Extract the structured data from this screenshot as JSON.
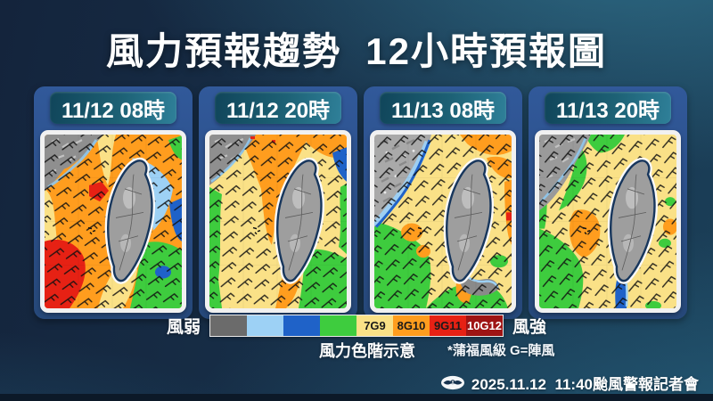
{
  "title": "風力預報趨勢  12小時預報圖",
  "panels": [
    {
      "label": "11/12 08時"
    },
    {
      "label": "11/12 20時"
    },
    {
      "label": "11/13 08時"
    },
    {
      "label": "11/13 20時"
    }
  ],
  "legend": {
    "weak_label": "風弱",
    "strong_label": "風強",
    "caption": "風力色階示意",
    "note": "*蒲福風級 G=陣風",
    "scale": [
      {
        "label": "",
        "color": "#6b6b6b",
        "text": "#000000"
      },
      {
        "label": "",
        "color": "#9dd1f5",
        "text": "#000000"
      },
      {
        "label": "",
        "color": "#1f62c8",
        "text": "#000000"
      },
      {
        "label": "",
        "color": "#3ecc3e",
        "text": "#000000"
      },
      {
        "label": "7G9",
        "color": "#fae187",
        "text": "#1a1a1a"
      },
      {
        "label": "8G10",
        "color": "#ff9d1e",
        "text": "#1a1a1a"
      },
      {
        "label": "9G11",
        "color": "#e62114",
        "text": "#1a1a1a"
      },
      {
        "label": "10G12",
        "color": "#9e1414",
        "text": "#ffffff"
      }
    ]
  },
  "footer": {
    "event": "2025.11.12  11:40颱風警報記者會",
    "logo": "cwa-logo"
  },
  "theme": {
    "background_navy": "#14243c",
    "background_teal": "#2a7a96",
    "card_blue": "#2d5590",
    "pill_teal_dark": "#10455a",
    "pill_teal_light": "#2f8099",
    "map_gray": "#9e9e9e",
    "map_lightblue": "#9dd1f5",
    "map_blue": "#1f62c8",
    "map_green": "#3ecc3e",
    "map_yellow": "#fae187",
    "map_orange": "#ff9d1e",
    "map_red": "#e62114"
  }
}
